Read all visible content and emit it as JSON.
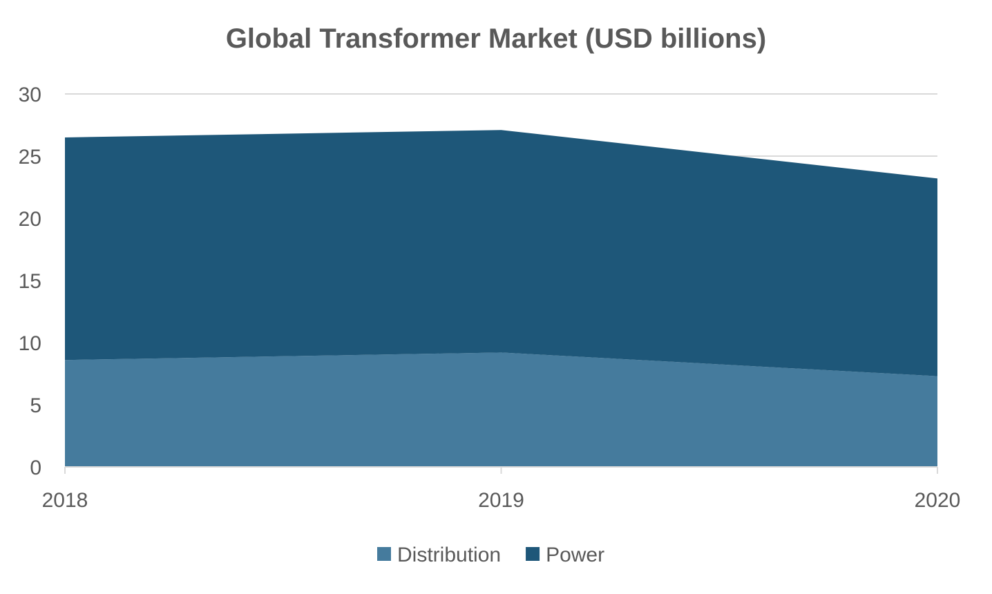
{
  "chart_data": {
    "type": "area",
    "stacked": true,
    "title": "Global Transformer Market (USD billions)",
    "xlabel": "",
    "ylabel": "",
    "categories": [
      "2018",
      "2019",
      "2020"
    ],
    "series": [
      {
        "name": "Distribution",
        "values": [
          8.6,
          9.2,
          7.3
        ],
        "color": "#457B9D"
      },
      {
        "name": "Power",
        "values": [
          17.9,
          17.9,
          15.9
        ],
        "color": "#1E5779"
      }
    ],
    "ylim": [
      0,
      30
    ],
    "yticks": [
      "0",
      "5",
      "10",
      "15",
      "20",
      "25",
      "30"
    ],
    "grid": true,
    "legend": "bottom"
  }
}
